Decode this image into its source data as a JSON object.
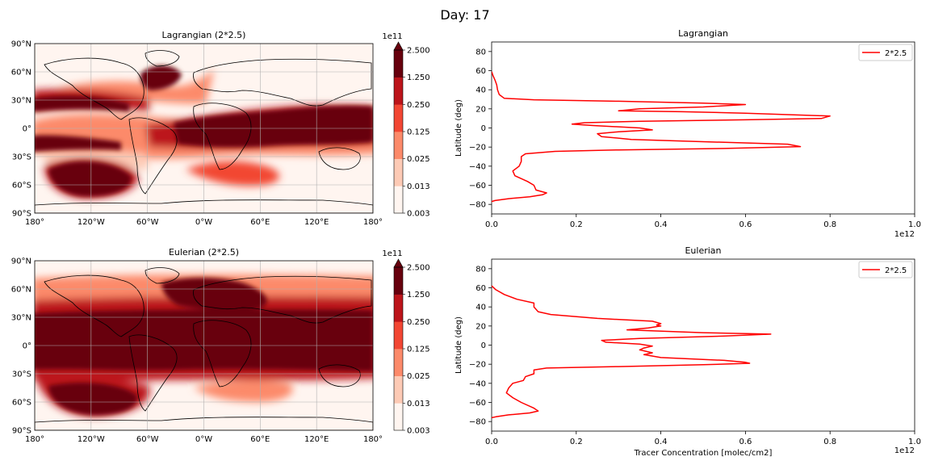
{
  "figure": {
    "title": "Day: 17"
  },
  "colors": {
    "levels": [
      "#fff5f0",
      "#fdcab5",
      "#fc8a6a",
      "#f24633",
      "#bc141a",
      "#67000d"
    ],
    "overflow": "#67000d",
    "line": "#ff0000",
    "land": "#000000",
    "grid": "#b0b0b0"
  },
  "maps": [
    {
      "title": "Lagrangian (2*2.5)",
      "colorbar": {
        "exponent": "1e11",
        "ticks": [
          "2.500",
          "1.250",
          "0.250",
          "0.125",
          "0.025",
          "0.013",
          "0.003"
        ]
      },
      "lat_ticks": [
        "90°N",
        "60°N",
        "30°N",
        "0°",
        "30°S",
        "60°S",
        "90°S"
      ],
      "lon_ticks": [
        "180°",
        "120°W",
        "60°W",
        "0°W",
        "60°E",
        "120°E",
        "180°"
      ]
    },
    {
      "title": "Eulerian (2*2.5)",
      "colorbar": {
        "exponent": "1e11",
        "ticks": [
          "2.500",
          "1.250",
          "0.250",
          "0.125",
          "0.025",
          "0.013",
          "0.003"
        ]
      },
      "lat_ticks": [
        "90°N",
        "60°N",
        "30°N",
        "0°",
        "30°S",
        "60°S",
        "90°S"
      ],
      "lon_ticks": [
        "180°",
        "120°W",
        "60°W",
        "0°W",
        "60°E",
        "120°E",
        "180°"
      ]
    }
  ],
  "chart_data": [
    {
      "type": "line",
      "title": "Lagrangian",
      "xlabel": "",
      "ylabel": "Latitude (deg)",
      "xlim": [
        0,
        1.0
      ],
      "ylim": [
        -90,
        90
      ],
      "x_ticks": [
        "0.0",
        "0.2",
        "0.4",
        "0.6",
        "0.8",
        "1.0"
      ],
      "x_tick_values": [
        0,
        0.2,
        0.4,
        0.6,
        0.8,
        1.0
      ],
      "y_ticks": [
        "80",
        "60",
        "40",
        "20",
        "0",
        "−20",
        "−40",
        "−60",
        "−80"
      ],
      "y_tick_values": [
        80,
        60,
        40,
        20,
        0,
        -20,
        -40,
        -60,
        -80
      ],
      "x_offset": "1e12",
      "legend": {
        "position": "top-right",
        "entries": [
          "2*2.5"
        ]
      },
      "series": [
        {
          "name": "2*2.5",
          "points": [
            [
              0.0,
              59
            ],
            [
              0.003,
              55
            ],
            [
              0.008,
              50
            ],
            [
              0.012,
              45
            ],
            [
              0.014,
              40
            ],
            [
              0.018,
              35
            ],
            [
              0.03,
              31
            ],
            [
              0.1,
              29.5
            ],
            [
              0.3,
              28
            ],
            [
              0.5,
              26
            ],
            [
              0.6,
              24.5
            ],
            [
              0.5,
              22
            ],
            [
              0.35,
              20
            ],
            [
              0.3,
              18
            ],
            [
              0.45,
              17
            ],
            [
              0.6,
              15.5
            ],
            [
              0.8,
              12.5
            ],
            [
              0.78,
              10
            ],
            [
              0.6,
              8.5
            ],
            [
              0.35,
              7
            ],
            [
              0.22,
              5.5
            ],
            [
              0.19,
              4
            ],
            [
              0.24,
              2.5
            ],
            [
              0.35,
              0
            ],
            [
              0.38,
              -2
            ],
            [
              0.3,
              -4
            ],
            [
              0.25,
              -6
            ],
            [
              0.26,
              -9
            ],
            [
              0.33,
              -12
            ],
            [
              0.55,
              -15
            ],
            [
              0.7,
              -17
            ],
            [
              0.73,
              -19.5
            ],
            [
              0.55,
              -21.5
            ],
            [
              0.3,
              -23
            ],
            [
              0.15,
              -24.5
            ],
            [
              0.08,
              -27
            ],
            [
              0.07,
              -30
            ],
            [
              0.07,
              -35
            ],
            [
              0.065,
              -40
            ],
            [
              0.05,
              -45
            ],
            [
              0.055,
              -50
            ],
            [
              0.085,
              -56
            ],
            [
              0.1,
              -60
            ],
            [
              0.105,
              -65
            ],
            [
              0.13,
              -68
            ],
            [
              0.12,
              -70
            ],
            [
              0.09,
              -72
            ],
            [
              0.04,
              -74
            ],
            [
              0.008,
              -76
            ],
            [
              0.0,
              -77
            ]
          ]
        }
      ]
    },
    {
      "type": "line",
      "title": "Eulerian",
      "xlabel": "Tracer Concentration [molec/cm2]",
      "ylabel": "Latitude (deg)",
      "xlim": [
        0,
        1.0
      ],
      "ylim": [
        -90,
        90
      ],
      "x_ticks": [
        "0.0",
        "0.2",
        "0.4",
        "0.6",
        "0.8",
        "1.0"
      ],
      "x_tick_values": [
        0,
        0.2,
        0.4,
        0.6,
        0.8,
        1.0
      ],
      "y_ticks": [
        "80",
        "60",
        "40",
        "20",
        "0",
        "−20",
        "−40",
        "−60",
        "−80"
      ],
      "y_tick_values": [
        80,
        60,
        40,
        20,
        0,
        -20,
        -40,
        -60,
        -80
      ],
      "x_offset": "1e12",
      "legend": {
        "position": "top-right",
        "entries": [
          "2*2.5"
        ]
      },
      "series": [
        {
          "name": "2*2.5",
          "points": [
            [
              0.0,
              62
            ],
            [
              0.01,
              58
            ],
            [
              0.03,
              53
            ],
            [
              0.06,
              48
            ],
            [
              0.1,
              44
            ],
            [
              0.1,
              40
            ],
            [
              0.11,
              35
            ],
            [
              0.14,
              32
            ],
            [
              0.25,
              28
            ],
            [
              0.38,
              25
            ],
            [
              0.4,
              22.5
            ],
            [
              0.39,
              21
            ],
            [
              0.4,
              20
            ],
            [
              0.37,
              18
            ],
            [
              0.32,
              16
            ],
            [
              0.5,
              13
            ],
            [
              0.66,
              11.5
            ],
            [
              0.55,
              9.5
            ],
            [
              0.35,
              7
            ],
            [
              0.26,
              5
            ],
            [
              0.27,
              3
            ],
            [
              0.35,
              1
            ],
            [
              0.38,
              -1
            ],
            [
              0.36,
              -3
            ],
            [
              0.35,
              -5
            ],
            [
              0.38,
              -8
            ],
            [
              0.36,
              -10
            ],
            [
              0.4,
              -13
            ],
            [
              0.55,
              -16
            ],
            [
              0.6,
              -18
            ],
            [
              0.61,
              -19
            ],
            [
              0.5,
              -20.5
            ],
            [
              0.3,
              -22.5
            ],
            [
              0.13,
              -24
            ],
            [
              0.1,
              -26
            ],
            [
              0.1,
              -30
            ],
            [
              0.08,
              -33
            ],
            [
              0.075,
              -37
            ],
            [
              0.05,
              -40
            ],
            [
              0.04,
              -45
            ],
            [
              0.035,
              -50
            ],
            [
              0.05,
              -55
            ],
            [
              0.07,
              -60
            ],
            [
              0.1,
              -66
            ],
            [
              0.11,
              -69
            ],
            [
              0.09,
              -71
            ],
            [
              0.04,
              -73
            ],
            [
              0.01,
              -75
            ],
            [
              0.0,
              -76
            ]
          ]
        }
      ]
    }
  ]
}
